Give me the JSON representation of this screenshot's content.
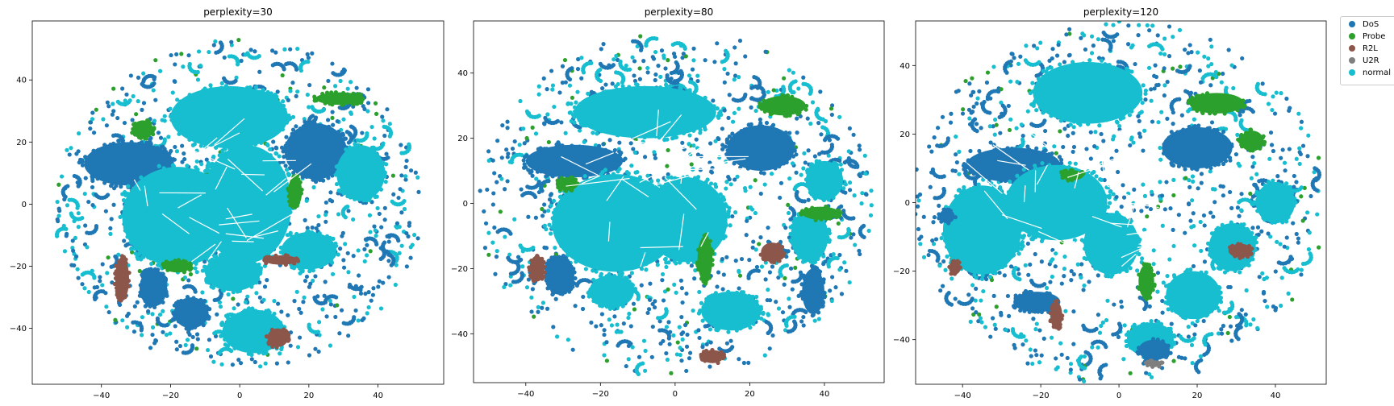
{
  "chart_data": [
    {
      "type": "scatter",
      "title": "perplexity=30",
      "xlim": [
        -60,
        59
      ],
      "ylim": [
        -58,
        59
      ],
      "xticks": [
        -40,
        -20,
        0,
        20,
        40
      ],
      "yticks": [
        -40,
        -20,
        0,
        20,
        40
      ],
      "xlabel": "",
      "ylabel": "",
      "clusters": [
        {
          "class": "DoS",
          "x": -32,
          "y": 13,
          "rx": 13,
          "ry": 7
        },
        {
          "class": "DoS",
          "x": 22,
          "y": 17,
          "rx": 9,
          "ry": 9
        },
        {
          "class": "normal",
          "x": -18,
          "y": -4,
          "rx": 16,
          "ry": 16
        },
        {
          "class": "normal",
          "x": 2,
          "y": 0,
          "rx": 13,
          "ry": 19
        },
        {
          "class": "normal",
          "x": -3,
          "y": 28,
          "rx": 17,
          "ry": 10
        },
        {
          "class": "normal",
          "x": 35,
          "y": 10,
          "rx": 7,
          "ry": 9
        },
        {
          "class": "normal",
          "x": 4,
          "y": -41,
          "rx": 9,
          "ry": 7
        },
        {
          "class": "normal",
          "x": 20,
          "y": -15,
          "rx": 8,
          "ry": 6
        },
        {
          "class": "normal",
          "x": -2,
          "y": -22,
          "rx": 8,
          "ry": 6
        },
        {
          "class": "DoS",
          "x": -25,
          "y": -27,
          "rx": 4,
          "ry": 6
        },
        {
          "class": "DoS",
          "x": -14,
          "y": -35,
          "rx": 5,
          "ry": 5
        },
        {
          "class": "Probe",
          "x": 29,
          "y": 34,
          "rx": 7,
          "ry": 2
        },
        {
          "class": "Probe",
          "x": -28,
          "y": 24,
          "rx": 3,
          "ry": 3
        },
        {
          "class": "Probe",
          "x": 16,
          "y": 4,
          "rx": 2,
          "ry": 5
        },
        {
          "class": "Probe",
          "x": -18,
          "y": -20,
          "rx": 4,
          "ry": 2
        },
        {
          "class": "R2L",
          "x": 11,
          "y": -43,
          "rx": 3,
          "ry": 3
        },
        {
          "class": "R2L",
          "x": -34,
          "y": -24,
          "rx": 2,
          "ry": 7
        },
        {
          "class": "R2L",
          "x": 12,
          "y": -18,
          "rx": 5,
          "ry": 1.5
        }
      ]
    },
    {
      "type": "scatter",
      "title": "perplexity=80",
      "xlim": [
        -54,
        56
      ],
      "ylim": [
        -55,
        56
      ],
      "xticks": [
        -40,
        -20,
        0,
        20,
        40
      ],
      "yticks": [
        -40,
        -20,
        0,
        20,
        40
      ],
      "xlabel": "",
      "ylabel": "",
      "clusters": [
        {
          "class": "DoS",
          "x": -27,
          "y": 13,
          "rx": 13,
          "ry": 5
        },
        {
          "class": "DoS",
          "x": 23,
          "y": 17,
          "rx": 9,
          "ry": 7
        },
        {
          "class": "normal",
          "x": -16,
          "y": -6,
          "rx": 17,
          "ry": 15
        },
        {
          "class": "normal",
          "x": 3,
          "y": -5,
          "rx": 11,
          "ry": 13
        },
        {
          "class": "normal",
          "x": -8,
          "y": 28,
          "rx": 19,
          "ry": 8
        },
        {
          "class": "normal",
          "x": 40,
          "y": 7,
          "rx": 5,
          "ry": 6
        },
        {
          "class": "normal",
          "x": 15,
          "y": -33,
          "rx": 8,
          "ry": 6
        },
        {
          "class": "normal",
          "x": 36,
          "y": -10,
          "rx": 5,
          "ry": 8
        },
        {
          "class": "normal",
          "x": -17,
          "y": -27,
          "rx": 6,
          "ry": 5
        },
        {
          "class": "DoS",
          "x": -31,
          "y": -22,
          "rx": 4,
          "ry": 6
        },
        {
          "class": "DoS",
          "x": 37,
          "y": -27,
          "rx": 3,
          "ry": 7
        },
        {
          "class": "Probe",
          "x": 29,
          "y": 30,
          "rx": 6,
          "ry": 3
        },
        {
          "class": "Probe",
          "x": 39,
          "y": -3,
          "rx": 5,
          "ry": 2
        },
        {
          "class": "Probe",
          "x": 8,
          "y": -17,
          "rx": 2,
          "ry": 7
        },
        {
          "class": "Probe",
          "x": -29,
          "y": 6,
          "rx": 3,
          "ry": 2
        },
        {
          "class": "R2L",
          "x": 10,
          "y": -47,
          "rx": 3,
          "ry": 2
        },
        {
          "class": "R2L",
          "x": 26,
          "y": -15,
          "rx": 3,
          "ry": 3
        },
        {
          "class": "R2L",
          "x": -37,
          "y": -20,
          "rx": 2,
          "ry": 4
        }
      ]
    },
    {
      "type": "scatter",
      "title": "perplexity=120",
      "xlim": [
        -52,
        53
      ],
      "ylim": [
        -53,
        53
      ],
      "xticks": [
        -40,
        -20,
        0,
        20,
        40
      ],
      "yticks": [
        -40,
        -20,
        0,
        20,
        40
      ],
      "xlabel": "",
      "ylabel": "",
      "clusters": [
        {
          "class": "DoS",
          "x": -27,
          "y": 11,
          "rx": 12,
          "ry": 5
        },
        {
          "class": "DoS",
          "x": 20,
          "y": 16,
          "rx": 9,
          "ry": 6
        },
        {
          "class": "normal",
          "x": -35,
          "y": -8,
          "rx": 10,
          "ry": 13
        },
        {
          "class": "normal",
          "x": -16,
          "y": 0,
          "rx": 13,
          "ry": 11
        },
        {
          "class": "normal",
          "x": -8,
          "y": 32,
          "rx": 14,
          "ry": 9
        },
        {
          "class": "normal",
          "x": 40,
          "y": 0,
          "rx": 5,
          "ry": 6
        },
        {
          "class": "normal",
          "x": 19,
          "y": -27,
          "rx": 7,
          "ry": 7
        },
        {
          "class": "normal",
          "x": -2,
          "y": -12,
          "rx": 7,
          "ry": 9
        },
        {
          "class": "normal",
          "x": 8,
          "y": -40,
          "rx": 6,
          "ry": 5
        },
        {
          "class": "normal",
          "x": 29,
          "y": -13,
          "rx": 6,
          "ry": 7
        },
        {
          "class": "DoS",
          "x": -21,
          "y": -29,
          "rx": 6,
          "ry": 3
        },
        {
          "class": "DoS",
          "x": 9,
          "y": -43,
          "rx": 4,
          "ry": 3
        },
        {
          "class": "DoS",
          "x": -44,
          "y": -4,
          "rx": 2,
          "ry": 2
        },
        {
          "class": "Probe",
          "x": 25,
          "y": 29,
          "rx": 7,
          "ry": 3
        },
        {
          "class": "Probe",
          "x": 34,
          "y": 18,
          "rx": 3,
          "ry": 3
        },
        {
          "class": "Probe",
          "x": 7,
          "y": -23,
          "rx": 2,
          "ry": 5
        },
        {
          "class": "Probe",
          "x": -12,
          "y": 8,
          "rx": 3,
          "ry": 1.5
        },
        {
          "class": "R2L",
          "x": 31,
          "y": -14,
          "rx": 3,
          "ry": 2
        },
        {
          "class": "R2L",
          "x": -42,
          "y": -19,
          "rx": 1.5,
          "ry": 2
        },
        {
          "class": "R2L",
          "x": -16,
          "y": -33,
          "rx": 1.5,
          "ry": 4
        },
        {
          "class": "U2R",
          "x": 9,
          "y": -47,
          "rx": 2,
          "ry": 1
        }
      ]
    }
  ],
  "legend": {
    "placement": "outside upper right",
    "entries": [
      {
        "label": "DoS",
        "color": "#1f77b4"
      },
      {
        "label": "Probe",
        "color": "#2ca02c"
      },
      {
        "label": "R2L",
        "color": "#8c564b"
      },
      {
        "label": "U2R",
        "color": "#7f7f7f"
      },
      {
        "label": "normal",
        "color": "#17becf"
      }
    ]
  },
  "class_colors": {
    "DoS": "#1f77b4",
    "Probe": "#2ca02c",
    "R2L": "#8c564b",
    "U2R": "#7f7f7f",
    "normal": "#17becf"
  }
}
